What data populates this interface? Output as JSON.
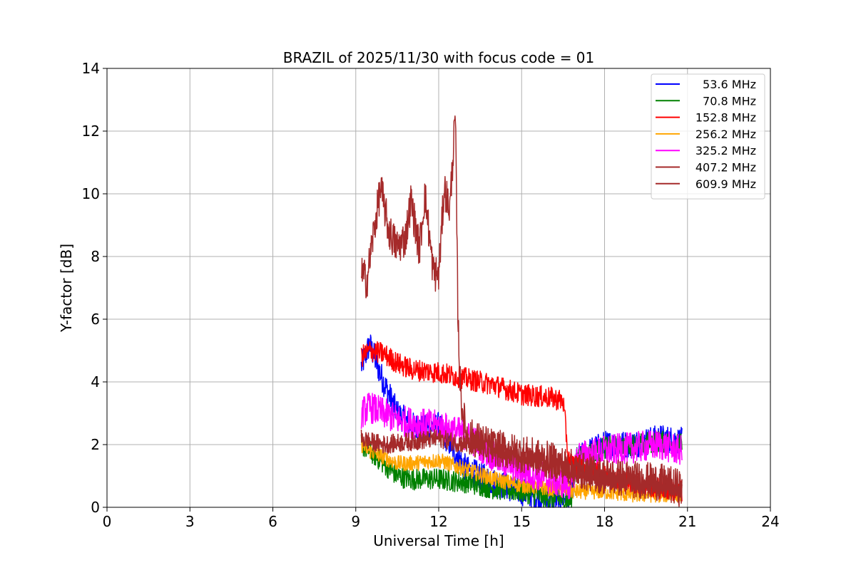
{
  "chart_data": {
    "type": "line",
    "title": "BRAZIL of 2025/11/30 with focus code = 01",
    "xlabel": "Universal Time [h]",
    "ylabel": "Y-factor [dB]",
    "xlim": [
      0,
      24
    ],
    "ylim": [
      0,
      14
    ],
    "xticks": [
      0,
      3,
      6,
      9,
      12,
      15,
      18,
      21,
      24
    ],
    "yticks": [
      0,
      2,
      4,
      6,
      8,
      10,
      12,
      14
    ],
    "grid": true,
    "legend": "top-right",
    "series": [
      {
        "name": "53.6 MHz",
        "color": "#0000ff",
        "noise": 0.45,
        "x": [
          9.2,
          9.5,
          10.0,
          10.5,
          11.0,
          11.5,
          12.0,
          13.0,
          14.0,
          15.0,
          16.0,
          16.8,
          17.0,
          17.5,
          18.0,
          19.0,
          20.0,
          20.8
        ],
        "y": [
          4.5,
          5.2,
          4.0,
          3.0,
          2.6,
          2.5,
          2.6,
          1.2,
          0.8,
          0.5,
          0.2,
          0.4,
          1.5,
          1.8,
          2.0,
          2.0,
          2.2,
          2.1
        ]
      },
      {
        "name": "70.8 MHz",
        "color": "#008000",
        "noise": 0.35,
        "x": [
          9.2,
          9.5,
          10.0,
          10.5,
          11.0,
          12.0,
          13.0,
          14.0,
          15.0,
          16.0,
          16.8,
          17.0,
          18.0,
          19.0,
          20.0,
          20.8
        ],
        "y": [
          2.0,
          1.8,
          1.4,
          1.0,
          0.9,
          0.9,
          0.8,
          0.6,
          0.5,
          0.3,
          0.2,
          1.6,
          1.9,
          2.0,
          2.1,
          2.0
        ]
      },
      {
        "name": "152.8 MHz",
        "color": "#ff0000",
        "noise": 0.35,
        "x": [
          9.2,
          9.5,
          10.0,
          10.5,
          11.0,
          12.0,
          13.0,
          14.0,
          15.0,
          16.0,
          16.5,
          16.7,
          17.0,
          17.5,
          18.0,
          19.0,
          20.0,
          20.8
        ],
        "y": [
          4.8,
          5.0,
          4.9,
          4.6,
          4.4,
          4.3,
          4.1,
          3.9,
          3.6,
          3.5,
          3.4,
          1.5,
          1.3,
          1.2,
          1.0,
          0.8,
          0.6,
          0.5
        ]
      },
      {
        "name": "256.2 MHz",
        "color": "#ffa500",
        "noise": 0.25,
        "x": [
          9.2,
          9.5,
          10.0,
          10.5,
          11.0,
          12.0,
          13.0,
          14.0,
          15.0,
          16.0,
          17.0,
          18.0,
          19.0,
          20.0,
          20.8
        ],
        "y": [
          2.0,
          1.8,
          1.6,
          1.4,
          1.4,
          1.5,
          1.2,
          0.9,
          0.7,
          0.6,
          0.5,
          0.5,
          0.4,
          0.4,
          0.4
        ]
      },
      {
        "name": "325.2 MHz",
        "color": "#ff00ff",
        "noise": 0.5,
        "x": [
          9.2,
          9.5,
          10.0,
          10.5,
          11.0,
          12.0,
          13.0,
          14.0,
          15.0,
          16.0,
          16.8,
          17.0,
          18.0,
          19.0,
          20.0,
          20.8
        ],
        "y": [
          3.0,
          3.2,
          3.0,
          2.8,
          2.7,
          2.6,
          2.3,
          1.6,
          1.2,
          0.9,
          0.7,
          1.6,
          1.8,
          1.9,
          2.0,
          1.8
        ]
      },
      {
        "name": "407.2 MHz",
        "color": "#a52a2a",
        "noise": 0.3,
        "x": [
          9.2,
          9.5,
          10.0,
          11.0,
          12.0,
          13.0,
          14.0,
          15.0,
          16.0,
          17.0,
          18.0,
          19.0,
          20.0,
          20.8
        ],
        "y": [
          2.2,
          2.1,
          2.0,
          2.1,
          2.2,
          2.0,
          1.8,
          1.6,
          1.4,
          1.1,
          0.9,
          0.8,
          0.7,
          0.6
        ]
      },
      {
        "name": "609.9 MHz",
        "color": "#a52a2a",
        "noise": 0.6,
        "x": [
          9.2,
          9.4,
          9.6,
          9.9,
          10.2,
          10.5,
          10.8,
          11.0,
          11.3,
          11.5,
          11.8,
          12.0,
          12.2,
          12.4,
          12.6,
          12.7,
          12.8,
          13.0,
          14.0,
          15.0,
          16.0,
          17.0,
          18.0,
          19.0,
          20.0,
          20.8
        ],
        "y": [
          7.5,
          7.2,
          8.5,
          10.2,
          8.8,
          8.3,
          8.6,
          9.8,
          8.2,
          10.0,
          7.5,
          7.4,
          10.2,
          9.5,
          12.5,
          6.0,
          3.5,
          2.3,
          1.9,
          1.7,
          1.5,
          1.2,
          1.0,
          0.9,
          0.8,
          0.6
        ]
      }
    ]
  }
}
